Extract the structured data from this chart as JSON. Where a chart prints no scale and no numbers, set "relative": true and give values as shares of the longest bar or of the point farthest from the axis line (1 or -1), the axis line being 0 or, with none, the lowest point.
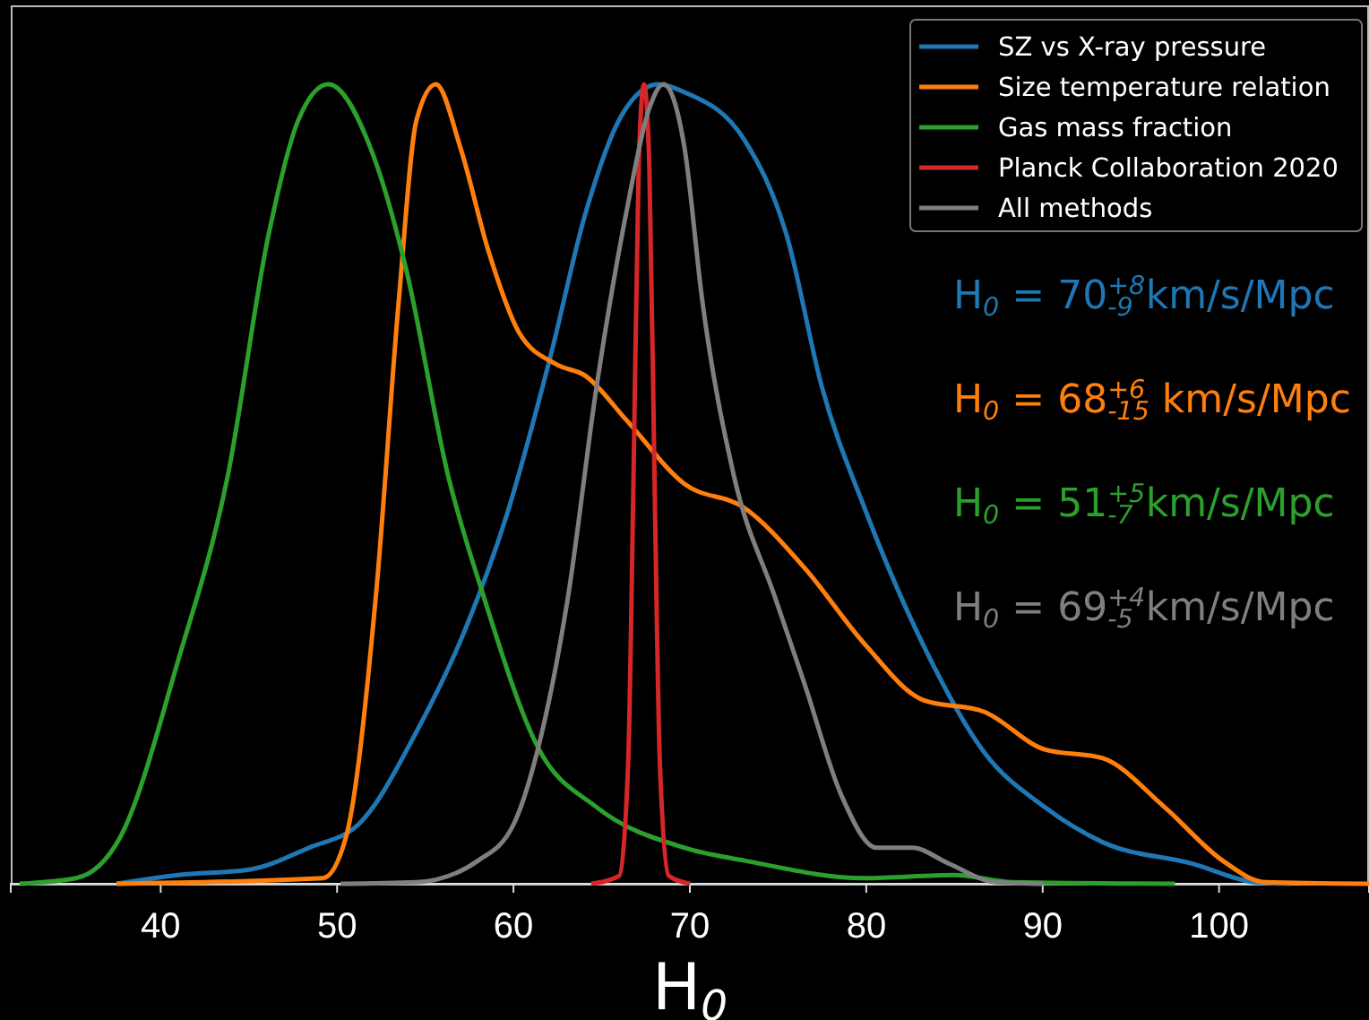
{
  "chart_data": {
    "type": "line",
    "relative": true,
    "xlabel": "H$_{0}$",
    "xlim": [
      31.5,
      108.5
    ],
    "xticks": [
      40,
      50,
      60,
      70,
      80,
      90,
      100
    ],
    "legend": "top right",
    "marker": "none",
    "line_style": "solid",
    "grid": false,
    "series": [
      {
        "name": "SZ vs X-ray pressure",
        "color": "#1f77b4",
        "x": [
          37.5,
          41.0,
          45.1,
          48.4,
          51.2,
          54.5,
          57.3,
          59.6,
          62.1,
          64.1,
          66.1,
          68.2,
          69.7,
          73.1,
          75.5,
          77.5,
          79.9,
          83.2,
          86.7,
          90.1,
          93.4,
          98.5,
          102,
          104
        ],
        "values": [
          0,
          0.011,
          0.018,
          0.045,
          0.074,
          0.19,
          0.32,
          0.46,
          0.66,
          0.84,
          0.96,
          1,
          0.99,
          0.93,
          0.81,
          0.62,
          0.47,
          0.3,
          0.164,
          0.096,
          0.052,
          0.025,
          0.002,
          0
        ]
      },
      {
        "name": "Size temperature relation",
        "color": "#ff7f0e",
        "x": [
          37.5,
          49.2,
          50.5,
          52.2,
          53.5,
          54.5,
          55.6,
          57.0,
          58.6,
          60.3,
          62.4,
          64.1,
          66.4,
          69.7,
          73.1,
          76.5,
          79.9,
          83.2,
          86.7,
          90.1,
          93.4,
          96.9,
          100.2,
          102.6,
          108.5
        ],
        "values": [
          0,
          0.007,
          0.058,
          0.36,
          0.73,
          0.955,
          1,
          0.92,
          0.79,
          0.69,
          0.65,
          0.635,
          0.58,
          0.5,
          0.47,
          0.395,
          0.3,
          0.23,
          0.215,
          0.168,
          0.157,
          0.096,
          0.029,
          0.002,
          0
        ]
      },
      {
        "name": "Gas mass fraction",
        "color": "#2ca02c",
        "x": [
          32,
          35.2,
          37.7,
          41.0,
          43.8,
          46.1,
          47.8,
          49.5,
          51.9,
          53.9,
          56.3,
          58.3,
          61.4,
          64.7,
          69.7,
          73.1,
          79.9,
          85,
          88.3,
          97.5
        ],
        "values": [
          0,
          0.007,
          0.058,
          0.28,
          0.51,
          0.81,
          0.955,
          1,
          0.92,
          0.77,
          0.51,
          0.36,
          0.17,
          0.096,
          0.045,
          0.029,
          0.007,
          0.011,
          0.002,
          0
        ]
      },
      {
        "name": "Planck Collaboration 2020",
        "color": "#d62728",
        "x": [
          64.4,
          66.0,
          66.5,
          66.8,
          67.1,
          67.4,
          67.7,
          68.0,
          68.3,
          68.8,
          70
        ],
        "values": [
          0,
          0.01,
          0.15,
          0.5,
          0.9,
          1,
          0.9,
          0.5,
          0.15,
          0.01,
          0
        ]
      },
      {
        "name": "All methods",
        "color": "#7f7f7f",
        "x": [
          50.2,
          54.5,
          58.0,
          60.0,
          61.4,
          63.1,
          64.7,
          66.4,
          67.7,
          68.5,
          69.7,
          70.7,
          72.5,
          74.8,
          76.5,
          78.6,
          80.6,
          82.6,
          84.7,
          87.3,
          90
        ],
        "values": [
          0,
          0.002,
          0.029,
          0.074,
          0.17,
          0.36,
          0.62,
          0.84,
          0.97,
          1,
          0.92,
          0.73,
          0.51,
          0.36,
          0.25,
          0.11,
          0.045,
          0.045,
          0.025,
          0.002,
          0
        ]
      }
    ],
    "annotations": [
      "H$_{0}$ = 70$^{+8}$$_{-9}$ km/s/Mpc",
      "H$_{0}$ = 68$^{+6}$$_{-15}$ km/s/Mpc",
      "H$_{0}$ = 51$^{+5}$$_{-7}$ km/s/Mpc",
      "H$_{0}$ = 69$^{+4}$$_{-5}$ km/s/Mpc"
    ]
  }
}
